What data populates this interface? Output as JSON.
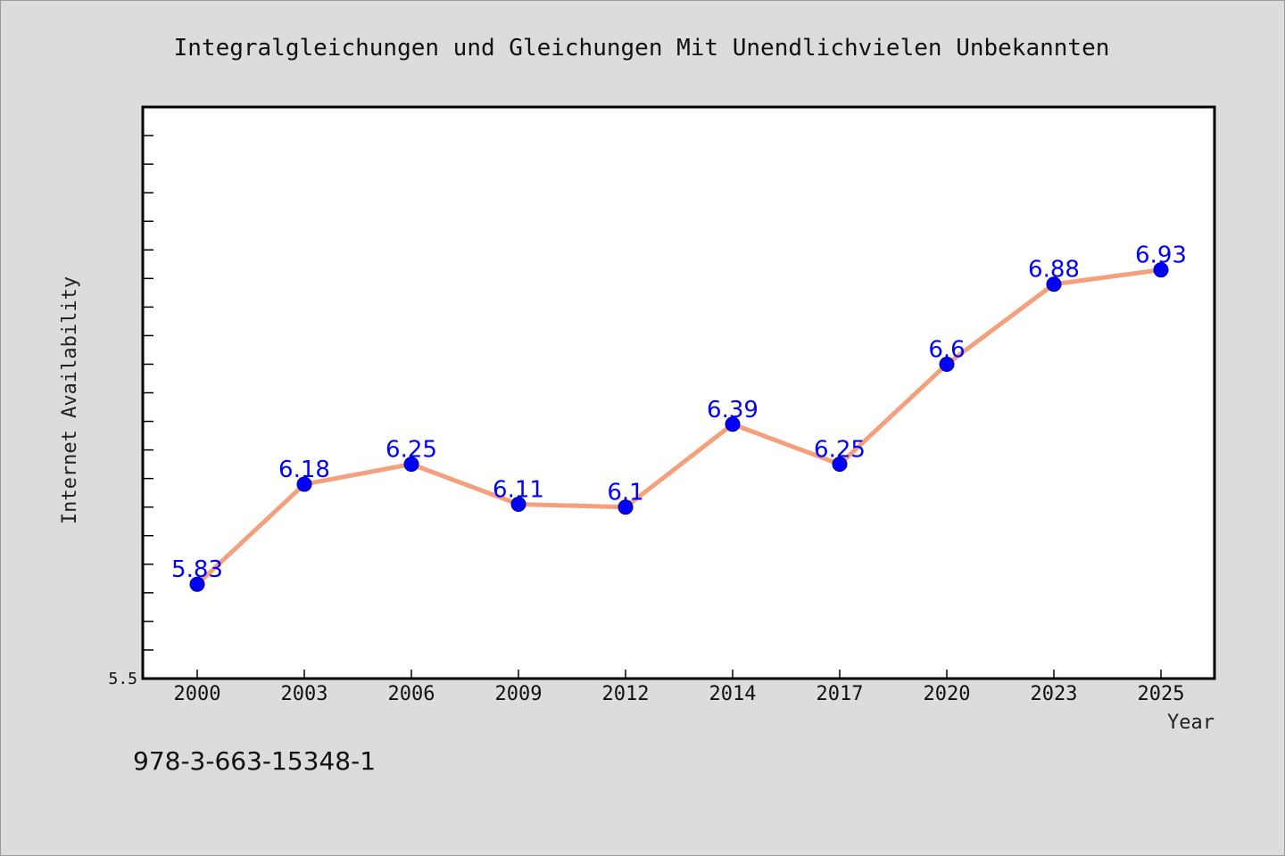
{
  "chart_data": {
    "type": "line",
    "title": "Integralgleichungen und Gleichungen Mit Unendlichvielen Unbekannten",
    "xlabel": "Year",
    "ylabel": "Internet Availability",
    "categories": [
      "2000",
      "2003",
      "2006",
      "2009",
      "2012",
      "2014",
      "2017",
      "2020",
      "2023",
      "2025"
    ],
    "series": [
      {
        "values": [
          5.83,
          6.18,
          6.25,
          6.11,
          6.1,
          6.39,
          6.25,
          6.6,
          6.88,
          6.93
        ],
        "labels": [
          "5.83",
          "6.18",
          "6.25",
          "6.11",
          "6.1",
          "6.39",
          "6.25",
          "6.6",
          "6.88",
          "6.93"
        ],
        "line_color": "#f4a07c",
        "marker_color": "#0000ff"
      }
    ],
    "ylim": [
      5.5,
      7.5
    ],
    "yticks_labeled": [
      "5.5"
    ],
    "grid": false,
    "legend": "none"
  },
  "footer": {
    "isbn": "978-3-663-15348-1"
  },
  "colors": {
    "background": "#dcdcdc",
    "plot_background": "#ffffff",
    "line": "#f4a07c",
    "marker": "#0000ff",
    "data_label": "#0000ff"
  }
}
